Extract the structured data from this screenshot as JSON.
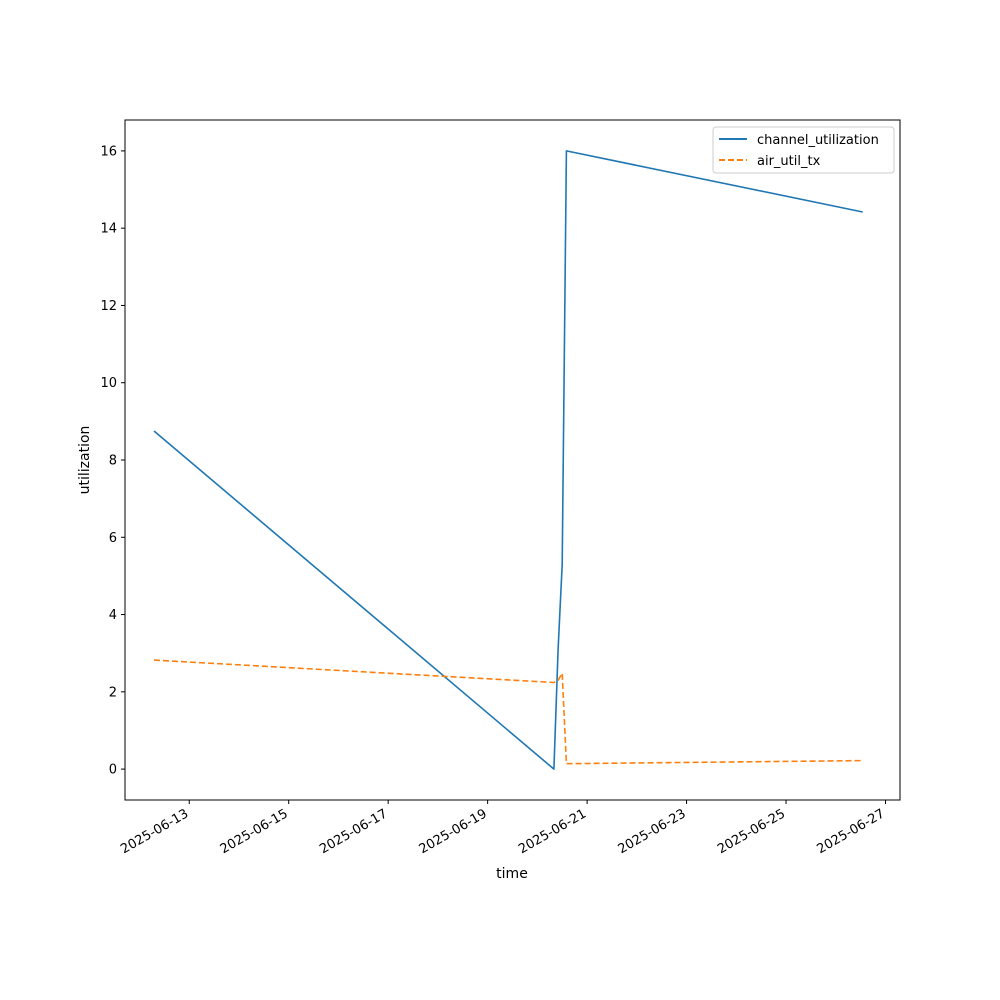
{
  "chart_data": {
    "type": "line",
    "xlabel": "time",
    "ylabel": "utilization",
    "x_axis_kind": "date",
    "xlim": [
      "2025-06-11 17:00",
      "2025-06-27 07:00"
    ],
    "ylim": [
      -0.8,
      16.8
    ],
    "x_ticks": [
      "2025-06-13",
      "2025-06-15",
      "2025-06-17",
      "2025-06-19",
      "2025-06-21",
      "2025-06-23",
      "2025-06-25",
      "2025-06-27"
    ],
    "y_ticks": [
      0,
      2,
      4,
      6,
      8,
      10,
      12,
      14,
      16
    ],
    "grid": false,
    "legend": {
      "placement": "top-right"
    },
    "series": [
      {
        "name": "channel_utilization",
        "color": "#1f77b4",
        "style": "solid",
        "points": [
          {
            "x": "2025-06-12 07:00",
            "y": 8.75
          },
          {
            "x": "2025-06-20 08:00",
            "y": 0.0
          },
          {
            "x": "2025-06-20 10:00",
            "y": 3.1
          },
          {
            "x": "2025-06-20 12:00",
            "y": 5.3
          },
          {
            "x": "2025-06-20 14:00",
            "y": 16.0
          },
          {
            "x": "2025-06-26 13:00",
            "y": 14.42
          }
        ]
      },
      {
        "name": "air_util_tx",
        "color": "#ff7f0e",
        "style": "dashed",
        "points": [
          {
            "x": "2025-06-12 07:00",
            "y": 2.82
          },
          {
            "x": "2025-06-20 08:00",
            "y": 2.24
          },
          {
            "x": "2025-06-20 10:00",
            "y": 2.3
          },
          {
            "x": "2025-06-20 12:00",
            "y": 2.48
          },
          {
            "x": "2025-06-20 14:00",
            "y": 0.14
          },
          {
            "x": "2025-06-26 13:00",
            "y": 0.22
          }
        ]
      }
    ]
  }
}
